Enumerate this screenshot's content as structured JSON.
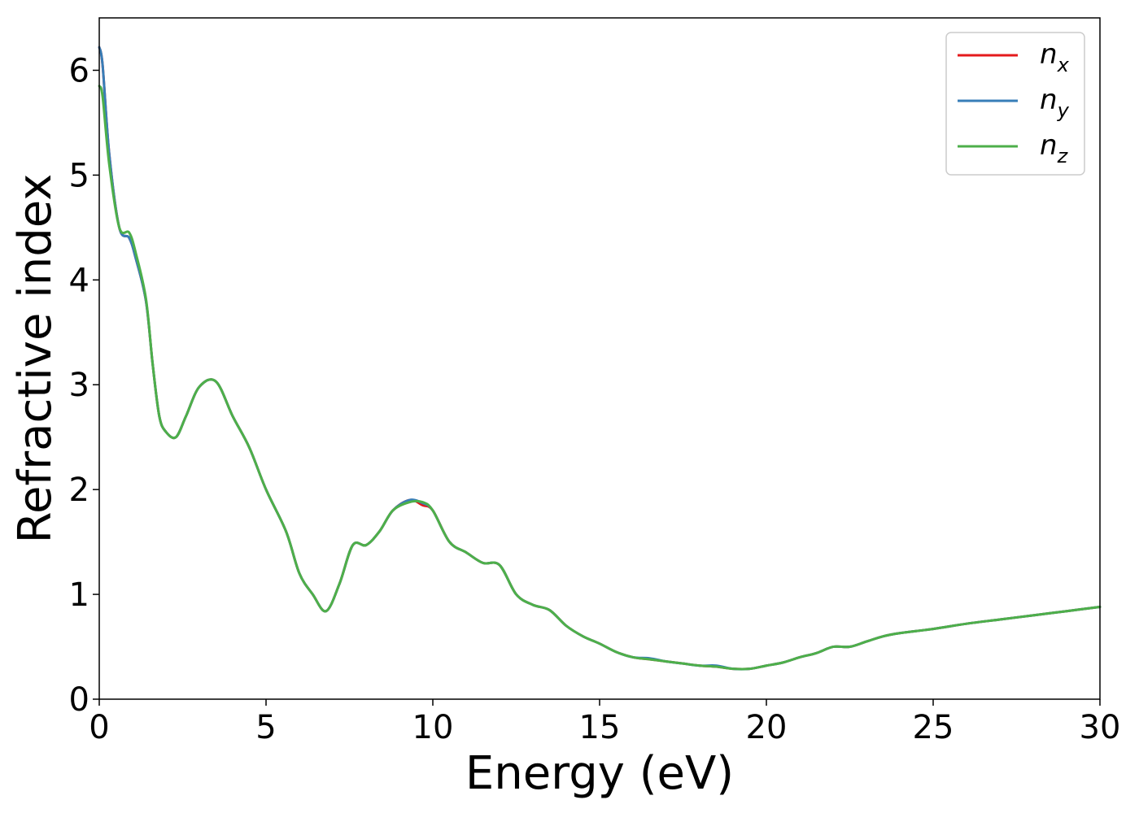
{
  "chart_data": {
    "type": "line",
    "title": "",
    "xlabel": "Energy (eV)",
    "ylabel": "Refractive index",
    "xlim": [
      0,
      30
    ],
    "ylim": [
      0,
      6.5
    ],
    "xticks": [
      0,
      5,
      10,
      15,
      20,
      25,
      30
    ],
    "yticks": [
      0,
      1,
      2,
      3,
      4,
      5,
      6
    ],
    "grid": false,
    "legend_position": "top-right",
    "series": [
      {
        "name": "n",
        "subscript": "x",
        "color": "#e41a1c",
        "x": [
          0,
          0.1,
          0.3,
          0.6,
          0.9,
          1.1,
          1.4,
          1.6,
          1.8,
          2.0,
          2.3,
          2.6,
          3.0,
          3.5,
          4.0,
          4.5,
          5.0,
          5.6,
          6.0,
          6.4,
          6.8,
          7.2,
          7.6,
          8.0,
          8.4,
          8.8,
          9.3,
          9.7,
          10.0,
          10.5,
          11.0,
          11.5,
          12.0,
          12.5,
          13.0,
          13.5,
          14.0,
          14.5,
          15.0,
          15.5,
          16.0,
          16.5,
          17.0,
          17.5,
          18.0,
          18.5,
          19.0,
          19.5,
          20.0,
          20.5,
          21.0,
          21.5,
          22.0,
          22.5,
          23.0,
          23.5,
          24.0,
          25.0,
          26.0,
          27.0,
          28.0,
          29.0,
          30.0
        ],
        "y": [
          6.22,
          6.05,
          5.2,
          4.5,
          4.4,
          4.2,
          3.8,
          3.2,
          2.7,
          2.55,
          2.5,
          2.7,
          2.98,
          3.03,
          2.7,
          2.4,
          2.0,
          1.6,
          1.2,
          1.0,
          0.84,
          1.1,
          1.47,
          1.47,
          1.6,
          1.8,
          1.9,
          1.85,
          1.8,
          1.5,
          1.4,
          1.3,
          1.28,
          1.0,
          0.9,
          0.85,
          0.7,
          0.6,
          0.53,
          0.45,
          0.4,
          0.38,
          0.36,
          0.34,
          0.32,
          0.31,
          0.29,
          0.29,
          0.32,
          0.35,
          0.4,
          0.44,
          0.5,
          0.5,
          0.55,
          0.6,
          0.63,
          0.67,
          0.72,
          0.76,
          0.8,
          0.84,
          0.88
        ]
      },
      {
        "name": "n",
        "subscript": "y",
        "color": "#377eb8",
        "x": [
          0,
          0.1,
          0.3,
          0.6,
          0.9,
          1.1,
          1.4,
          1.6,
          1.8,
          2.0,
          2.3,
          2.6,
          3.0,
          3.5,
          4.0,
          4.5,
          5.0,
          5.6,
          6.0,
          6.4,
          6.8,
          7.2,
          7.6,
          8.0,
          8.4,
          8.8,
          9.3,
          9.7,
          10.0,
          10.5,
          11.0,
          11.5,
          12.0,
          12.5,
          13.0,
          13.5,
          14.0,
          14.5,
          15.0,
          15.5,
          16.0,
          16.5,
          17.0,
          17.5,
          18.0,
          18.5,
          19.0,
          19.5,
          20.0,
          20.5,
          21.0,
          21.5,
          22.0,
          22.5,
          23.0,
          23.5,
          24.0,
          25.0,
          26.0,
          27.0,
          28.0,
          29.0,
          30.0
        ],
        "y": [
          6.22,
          6.05,
          5.2,
          4.5,
          4.4,
          4.2,
          3.8,
          3.2,
          2.7,
          2.55,
          2.5,
          2.7,
          2.98,
          3.03,
          2.7,
          2.4,
          2.0,
          1.6,
          1.2,
          1.0,
          0.84,
          1.1,
          1.47,
          1.47,
          1.6,
          1.8,
          1.9,
          1.87,
          1.8,
          1.5,
          1.4,
          1.3,
          1.28,
          1.0,
          0.9,
          0.85,
          0.7,
          0.6,
          0.53,
          0.45,
          0.4,
          0.39,
          0.36,
          0.34,
          0.32,
          0.32,
          0.29,
          0.29,
          0.32,
          0.35,
          0.4,
          0.44,
          0.5,
          0.5,
          0.55,
          0.6,
          0.63,
          0.67,
          0.72,
          0.76,
          0.8,
          0.84,
          0.88
        ]
      },
      {
        "name": "n",
        "subscript": "z",
        "color": "#4daf4a",
        "x": [
          0,
          0.1,
          0.3,
          0.6,
          0.9,
          1.1,
          1.4,
          1.6,
          1.8,
          2.0,
          2.3,
          2.6,
          3.0,
          3.5,
          4.0,
          4.5,
          5.0,
          5.6,
          6.0,
          6.4,
          6.8,
          7.2,
          7.6,
          8.0,
          8.4,
          8.8,
          9.3,
          9.7,
          10.0,
          10.5,
          11.0,
          11.5,
          12.0,
          12.5,
          13.0,
          13.5,
          14.0,
          14.5,
          15.0,
          15.5,
          16.0,
          16.5,
          17.0,
          17.5,
          18.0,
          18.5,
          19.0,
          19.5,
          20.0,
          20.5,
          21.0,
          21.5,
          22.0,
          22.5,
          23.0,
          23.5,
          24.0,
          25.0,
          26.0,
          27.0,
          28.0,
          29.0,
          30.0
        ],
        "y": [
          5.85,
          5.75,
          5.1,
          4.5,
          4.45,
          4.25,
          3.82,
          3.2,
          2.7,
          2.55,
          2.5,
          2.7,
          2.98,
          3.03,
          2.7,
          2.4,
          2.0,
          1.6,
          1.2,
          1.0,
          0.84,
          1.1,
          1.47,
          1.47,
          1.6,
          1.8,
          1.88,
          1.88,
          1.8,
          1.5,
          1.4,
          1.3,
          1.28,
          1.0,
          0.9,
          0.85,
          0.7,
          0.6,
          0.53,
          0.45,
          0.4,
          0.38,
          0.36,
          0.34,
          0.32,
          0.31,
          0.29,
          0.29,
          0.32,
          0.35,
          0.4,
          0.44,
          0.5,
          0.5,
          0.55,
          0.6,
          0.63,
          0.67,
          0.72,
          0.76,
          0.8,
          0.84,
          0.88
        ]
      }
    ]
  }
}
